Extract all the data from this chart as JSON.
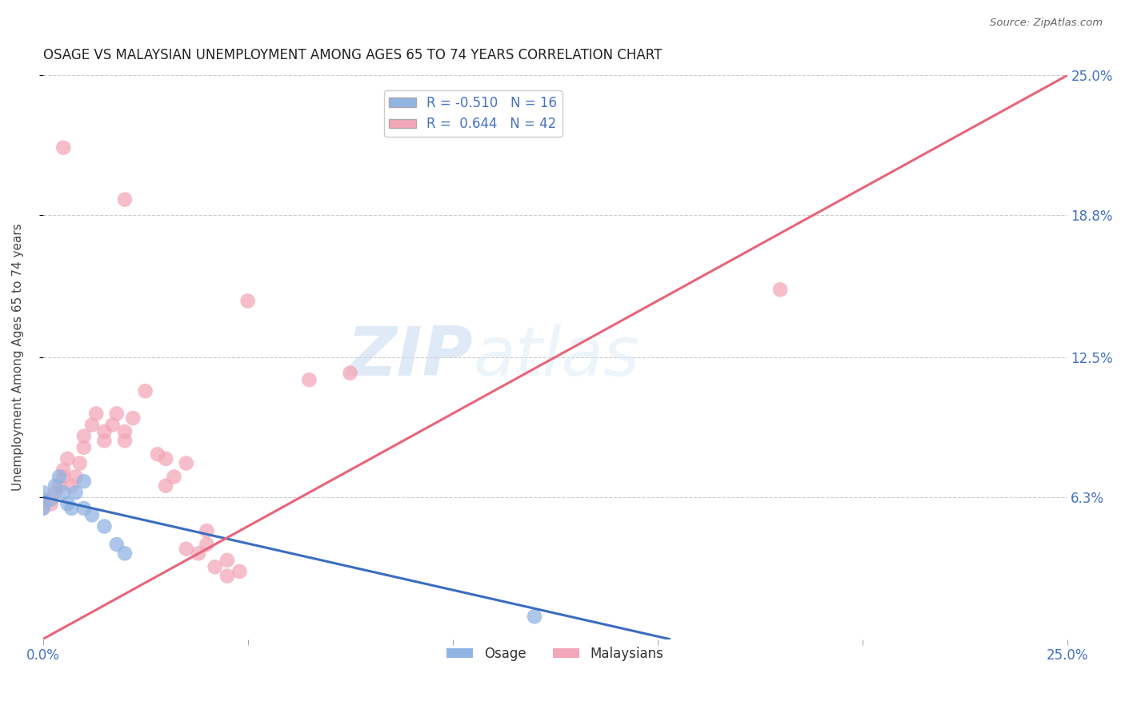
{
  "title": "OSAGE VS MALAYSIAN UNEMPLOYMENT AMONG AGES 65 TO 74 YEARS CORRELATION CHART",
  "source": "Source: ZipAtlas.com",
  "ylabel": "Unemployment Among Ages 65 to 74 years",
  "xlim": [
    0.0,
    0.25
  ],
  "ylim": [
    0.0,
    0.25
  ],
  "osage_color": "#92b4e3",
  "malaysian_color": "#f4a7b9",
  "osage_line_color": "#3a6dbf",
  "malaysian_line_color": "#e8647a",
  "osage_R": -0.51,
  "osage_N": 16,
  "malaysian_R": 0.644,
  "malaysian_N": 42,
  "legend_label_osage": "Osage",
  "legend_label_malaysian": "Malaysians",
  "osage_line": [
    [
      0.0,
      0.063
    ],
    [
      0.25,
      -0.04
    ]
  ],
  "malaysian_line": [
    [
      0.0,
      0.0
    ],
    [
      0.25,
      0.25
    ]
  ],
  "osage_points": [
    [
      0.0,
      0.065
    ],
    [
      0.0,
      0.058
    ],
    [
      0.002,
      0.062
    ],
    [
      0.003,
      0.068
    ],
    [
      0.004,
      0.072
    ],
    [
      0.005,
      0.065
    ],
    [
      0.006,
      0.06
    ],
    [
      0.007,
      0.058
    ],
    [
      0.008,
      0.065
    ],
    [
      0.01,
      0.07
    ],
    [
      0.01,
      0.058
    ],
    [
      0.012,
      0.055
    ],
    [
      0.015,
      0.05
    ],
    [
      0.018,
      0.042
    ],
    [
      0.02,
      0.038
    ],
    [
      0.12,
      0.01
    ]
  ],
  "malaysian_points": [
    [
      0.0,
      0.058
    ],
    [
      0.0,
      0.062
    ],
    [
      0.002,
      0.06
    ],
    [
      0.003,
      0.065
    ],
    [
      0.004,
      0.068
    ],
    [
      0.005,
      0.072
    ],
    [
      0.005,
      0.075
    ],
    [
      0.006,
      0.08
    ],
    [
      0.007,
      0.068
    ],
    [
      0.008,
      0.072
    ],
    [
      0.009,
      0.078
    ],
    [
      0.01,
      0.085
    ],
    [
      0.01,
      0.09
    ],
    [
      0.012,
      0.095
    ],
    [
      0.013,
      0.1
    ],
    [
      0.015,
      0.088
    ],
    [
      0.015,
      0.092
    ],
    [
      0.017,
      0.095
    ],
    [
      0.018,
      0.1
    ],
    [
      0.02,
      0.088
    ],
    [
      0.02,
      0.092
    ],
    [
      0.022,
      0.098
    ],
    [
      0.025,
      0.11
    ],
    [
      0.028,
      0.082
    ],
    [
      0.03,
      0.08
    ],
    [
      0.03,
      0.068
    ],
    [
      0.032,
      0.072
    ],
    [
      0.035,
      0.078
    ],
    [
      0.035,
      0.04
    ],
    [
      0.038,
      0.038
    ],
    [
      0.04,
      0.042
    ],
    [
      0.04,
      0.048
    ],
    [
      0.042,
      0.032
    ],
    [
      0.045,
      0.028
    ],
    [
      0.045,
      0.035
    ],
    [
      0.048,
      0.03
    ],
    [
      0.02,
      0.195
    ],
    [
      0.05,
      0.15
    ],
    [
      0.065,
      0.115
    ],
    [
      0.075,
      0.118
    ],
    [
      0.18,
      0.155
    ],
    [
      0.005,
      0.218
    ]
  ]
}
